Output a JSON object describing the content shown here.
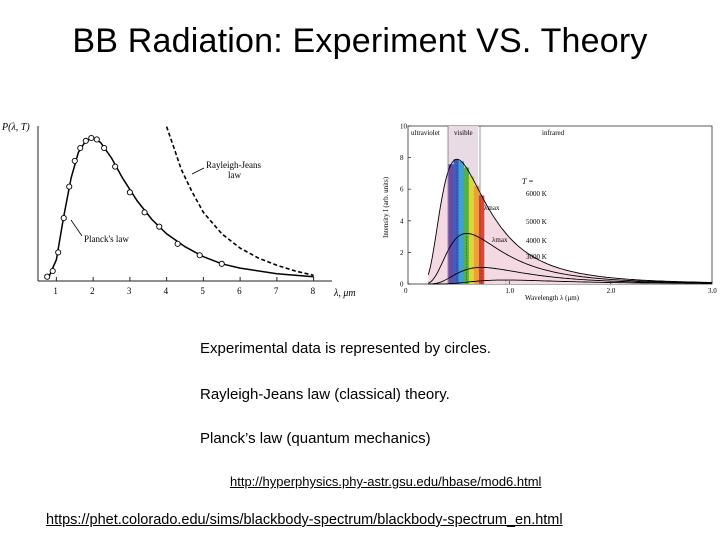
{
  "slide": {
    "title": "BB Radiation: Experiment VS. Theory",
    "captions": [
      "Experimental data is represented by circles.",
      "Rayleigh-Jeans law (classical) theory.",
      "Planck’s law (quantum mechanics)"
    ],
    "links": [
      "http://hyperphysics.phy-astr.gsu.edu/hbase/mod6.html",
      "https://phet.colorado.edu/sims/blackbody-spectrum/blackbody-spectrum_en.html"
    ]
  },
  "colors": {
    "visible_band": "#e8dbe6",
    "curve_fill": "#f4d9e3"
  },
  "chart_data": [
    {
      "type": "line",
      "ylabel": "P(λ, T)",
      "xlabel": "λ, μm",
      "x_ticks": [
        "1",
        "2",
        "3",
        "4",
        "5",
        "6",
        "7",
        "8"
      ],
      "xlim": [
        0.5,
        8.5
      ],
      "series": [
        {
          "name": "Planck's law",
          "label": "Planck's law",
          "x": [
            0.8,
            1.0,
            1.2,
            1.4,
            1.6,
            1.8,
            2.0,
            2.2,
            2.5,
            2.8,
            3.2,
            3.6,
            4.0,
            4.5,
            5.0,
            5.5,
            6.0,
            7.0,
            8.0
          ],
          "y": [
            0.03,
            0.15,
            0.45,
            0.72,
            0.9,
            0.98,
            1.0,
            0.97,
            0.86,
            0.72,
            0.56,
            0.43,
            0.33,
            0.24,
            0.17,
            0.12,
            0.09,
            0.05,
            0.03
          ]
        },
        {
          "name": "Rayleigh-Jeans law",
          "label_line1": "Rayleigh-Jeans",
          "label_line2": "law",
          "x": [
            4.0,
            4.2,
            4.4,
            4.7,
            5.0,
            5.5,
            6.0,
            6.5,
            7.0,
            7.5,
            8.0
          ],
          "y": [
            1.08,
            0.93,
            0.78,
            0.62,
            0.48,
            0.33,
            0.23,
            0.16,
            0.11,
            0.07,
            0.04
          ]
        }
      ],
      "data_points": {
        "x": [
          0.75,
          0.9,
          1.05,
          1.2,
          1.35,
          1.5,
          1.65,
          1.8,
          1.95,
          2.1,
          2.3,
          2.6,
          3.0,
          3.4,
          3.8,
          4.3,
          4.9,
          5.5
        ],
        "y": [
          0.03,
          0.07,
          0.2,
          0.44,
          0.66,
          0.84,
          0.93,
          0.98,
          1.0,
          0.99,
          0.93,
          0.8,
          0.62,
          0.48,
          0.38,
          0.26,
          0.18,
          0.12
        ]
      }
    },
    {
      "type": "line",
      "ylabel": "Intensity  I  (arb. units)",
      "xlabel": "Wavelength  λ  (μm)",
      "region_labels": [
        "ultraviolet",
        "visible",
        "infrared"
      ],
      "temperature_label": "T =",
      "lambda_max_label": "λmax",
      "xlim": [
        0,
        3.0
      ],
      "ylim": [
        0,
        10
      ],
      "x_ticks": [
        "0",
        "1.0",
        "2.0",
        "3.0"
      ],
      "y_ticks": [
        "0",
        "2",
        "4",
        "6",
        "8",
        "10"
      ],
      "series": [
        {
          "name": "6000 K",
          "peak_x": 0.483,
          "peak_y": 7.9
        },
        {
          "name": "5000 K",
          "peak_x": 0.58,
          "peak_y": 3.2
        },
        {
          "name": "4000 K",
          "peak_x": 0.725,
          "peak_y": 1.05
        },
        {
          "name": "3000 K",
          "peak_x": 0.966,
          "peak_y": 0.25
        }
      ]
    }
  ]
}
